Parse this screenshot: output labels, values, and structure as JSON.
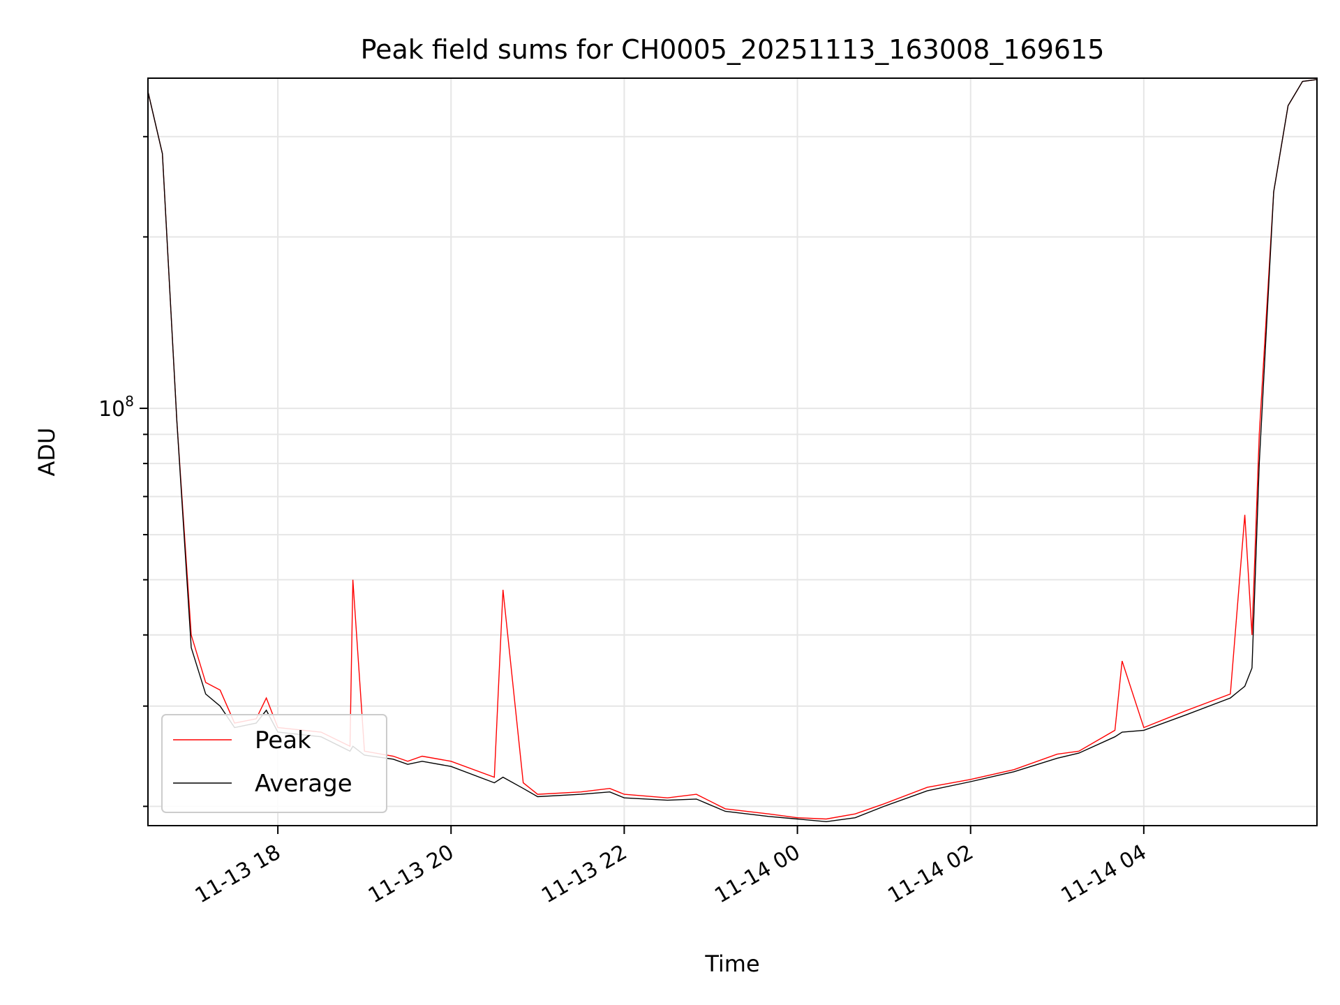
{
  "chart_data": {
    "type": "line",
    "title": "Peak field sums for CH0005_20251113_163008_169615",
    "xlabel": "Time",
    "ylabel": "ADU",
    "y_scale": "log",
    "ylim": [
      18500000,
      380000000
    ],
    "xlim": [
      "2025-11-13 16:30",
      "2025-11-14 06:00"
    ],
    "x_ticks": [
      "11-13 18",
      "11-13 20",
      "11-13 22",
      "11-14 00",
      "11-14 02",
      "11-14 04"
    ],
    "y_tick_major_label": "10",
    "y_tick_major_exponent": "8",
    "grid": true,
    "legend_position": "lower-left",
    "colors": {
      "peak": "#ff0000",
      "average": "#000000"
    },
    "series": [
      {
        "name": "Peak",
        "x": [
          "2025-11-13 16:30",
          "2025-11-13 16:40",
          "2025-11-13 16:50",
          "2025-11-13 17:00",
          "2025-11-13 17:10",
          "2025-11-13 17:20",
          "2025-11-13 17:30",
          "2025-11-13 17:45",
          "2025-11-13 17:52",
          "2025-11-13 18:00",
          "2025-11-13 18:30",
          "2025-11-13 18:50",
          "2025-11-13 18:52",
          "2025-11-13 19:00",
          "2025-11-13 19:20",
          "2025-11-13 19:30",
          "2025-11-13 19:40",
          "2025-11-13 20:00",
          "2025-11-13 20:30",
          "2025-11-13 20:36",
          "2025-11-13 20:50",
          "2025-11-13 21:00",
          "2025-11-13 21:30",
          "2025-11-13 21:50",
          "2025-11-13 22:00",
          "2025-11-13 22:30",
          "2025-11-13 22:50",
          "2025-11-13 23:10",
          "2025-11-13 23:40",
          "2025-11-14 00:00",
          "2025-11-14 00:20",
          "2025-11-14 00:40",
          "2025-11-14 01:00",
          "2025-11-14 01:30",
          "2025-11-14 02:00",
          "2025-11-14 02:30",
          "2025-11-14 03:00",
          "2025-11-14 03:15",
          "2025-11-14 03:40",
          "2025-11-14 03:45",
          "2025-11-14 04:00",
          "2025-11-14 04:30",
          "2025-11-14 05:00",
          "2025-11-14 05:10",
          "2025-11-14 05:15",
          "2025-11-14 05:20",
          "2025-11-14 05:30",
          "2025-11-14 05:40",
          "2025-11-14 05:50",
          "2025-11-14 06:00"
        ],
        "y": [
          360000000,
          280000000,
          95000000,
          40000000,
          33000000,
          32000000,
          28000000,
          28500000,
          31000000,
          27500000,
          27000000,
          25500000,
          50000000,
          25000000,
          24500000,
          24000000,
          24500000,
          24000000,
          22500000,
          48000000,
          22000000,
          21000000,
          21200000,
          21500000,
          21000000,
          20700000,
          21000000,
          19800000,
          19400000,
          19100000,
          19000000,
          19400000,
          20200000,
          21600000,
          22300000,
          23200000,
          24700000,
          25000000,
          27200000,
          36000000,
          27500000,
          29500000,
          31500000,
          65000000,
          40000000,
          90000000,
          240000000,
          340000000,
          375000000,
          378000000
        ]
      },
      {
        "name": "Average",
        "x": [
          "2025-11-13 16:30",
          "2025-11-13 16:40",
          "2025-11-13 16:50",
          "2025-11-13 17:00",
          "2025-11-13 17:10",
          "2025-11-13 17:20",
          "2025-11-13 17:30",
          "2025-11-13 17:45",
          "2025-11-13 17:52",
          "2025-11-13 18:00",
          "2025-11-13 18:30",
          "2025-11-13 18:50",
          "2025-11-13 18:52",
          "2025-11-13 19:00",
          "2025-11-13 19:20",
          "2025-11-13 19:30",
          "2025-11-13 19:40",
          "2025-11-13 20:00",
          "2025-11-13 20:30",
          "2025-11-13 20:36",
          "2025-11-13 20:50",
          "2025-11-13 21:00",
          "2025-11-13 21:30",
          "2025-11-13 21:50",
          "2025-11-13 22:00",
          "2025-11-13 22:30",
          "2025-11-13 22:50",
          "2025-11-13 23:10",
          "2025-11-13 23:40",
          "2025-11-14 00:00",
          "2025-11-14 00:20",
          "2025-11-14 00:40",
          "2025-11-14 01:00",
          "2025-11-14 01:30",
          "2025-11-14 02:00",
          "2025-11-14 02:30",
          "2025-11-14 03:00",
          "2025-11-14 03:15",
          "2025-11-14 03:40",
          "2025-11-14 03:45",
          "2025-11-14 04:00",
          "2025-11-14 04:30",
          "2025-11-14 05:00",
          "2025-11-14 05:10",
          "2025-11-14 05:15",
          "2025-11-14 05:20",
          "2025-11-14 05:30",
          "2025-11-14 05:40",
          "2025-11-14 05:50",
          "2025-11-14 06:00"
        ],
        "y": [
          360000000,
          280000000,
          95000000,
          38000000,
          31500000,
          30000000,
          27500000,
          28000000,
          29500000,
          27000000,
          26500000,
          25000000,
          25500000,
          24600000,
          24200000,
          23700000,
          24000000,
          23500000,
          22000000,
          22500000,
          21500000,
          20800000,
          21000000,
          21200000,
          20700000,
          20500000,
          20600000,
          19600000,
          19200000,
          19000000,
          18800000,
          19100000,
          20000000,
          21300000,
          22100000,
          23000000,
          24300000,
          24800000,
          26500000,
          27000000,
          27200000,
          29000000,
          31000000,
          32500000,
          35000000,
          80000000,
          240000000,
          340000000,
          375000000,
          378000000
        ]
      }
    ]
  }
}
